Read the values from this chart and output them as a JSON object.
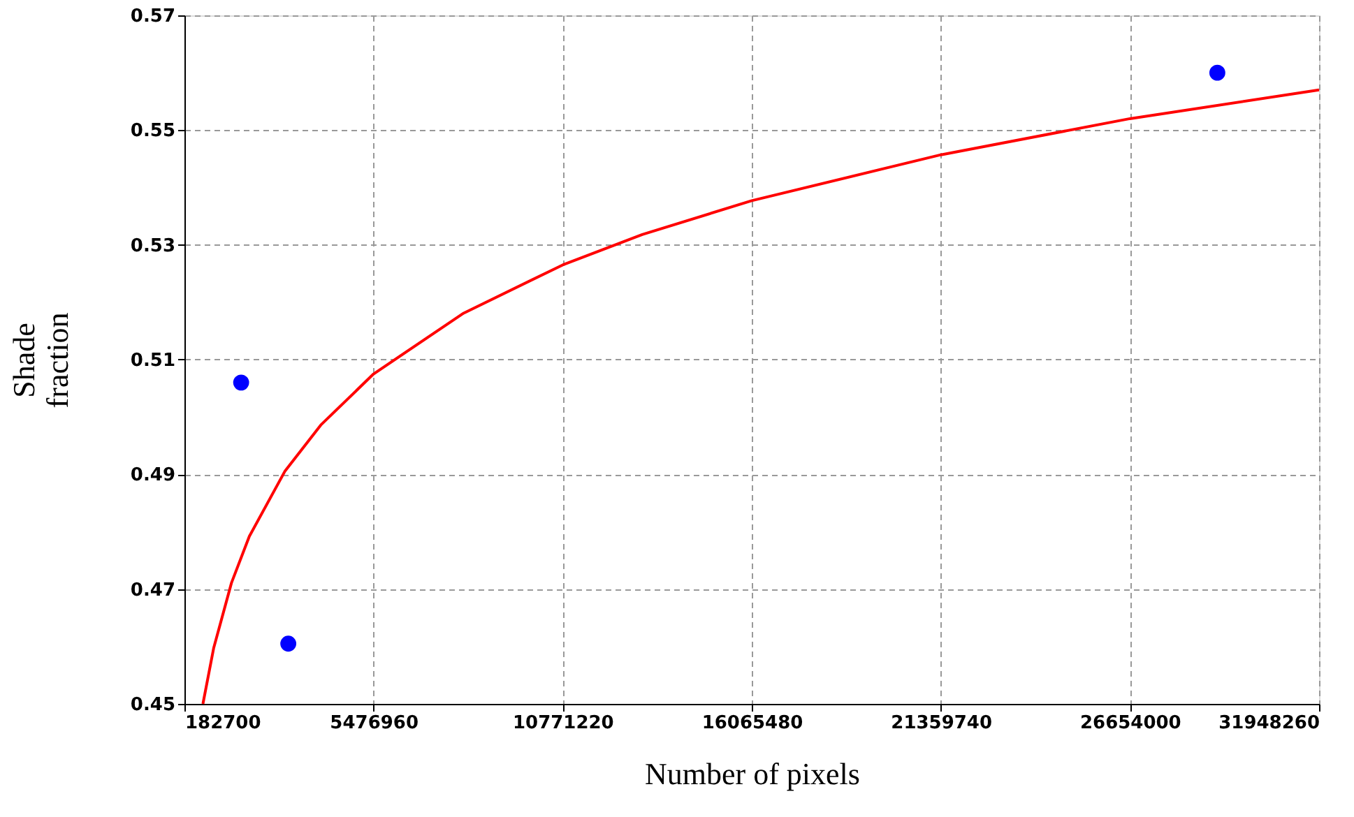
{
  "chart_data": {
    "type": "scatter",
    "xlabel": "Number of pixels",
    "ylabel": "Shade fraction",
    "xlim": [
      182700,
      31948260
    ],
    "xticks": [
      182700,
      5476960,
      10771220,
      16065480,
      21359740,
      26654000,
      31948260
    ],
    "ylim": [
      0.45,
      0.57
    ],
    "yticks": [
      0.45,
      0.47,
      0.49,
      0.51,
      0.53,
      0.55,
      0.57
    ],
    "grid": true,
    "marker": "circle",
    "series": [
      {
        "color": "#0000ff",
        "x": [
          1770000,
          3090000,
          29100000
        ],
        "values": [
          0.506,
          0.4605,
          0.56
        ]
      },
      {
        "type": "line",
        "color": "#ff0000",
        "marker": "none",
        "line_style": "solid",
        "x": [
          700000,
          1000000,
          1500000,
          2000000,
          3000000,
          4000000,
          5476960,
          8000000,
          10771220,
          13000000,
          16065480,
          21359740,
          26654000,
          31948260
        ],
        "values": [
          0.45,
          0.4597,
          0.4711,
          0.4792,
          0.4906,
          0.4986,
          0.5075,
          0.5181,
          0.5265,
          0.5318,
          0.5377,
          0.5457,
          0.552,
          0.557
        ]
      }
    ]
  }
}
